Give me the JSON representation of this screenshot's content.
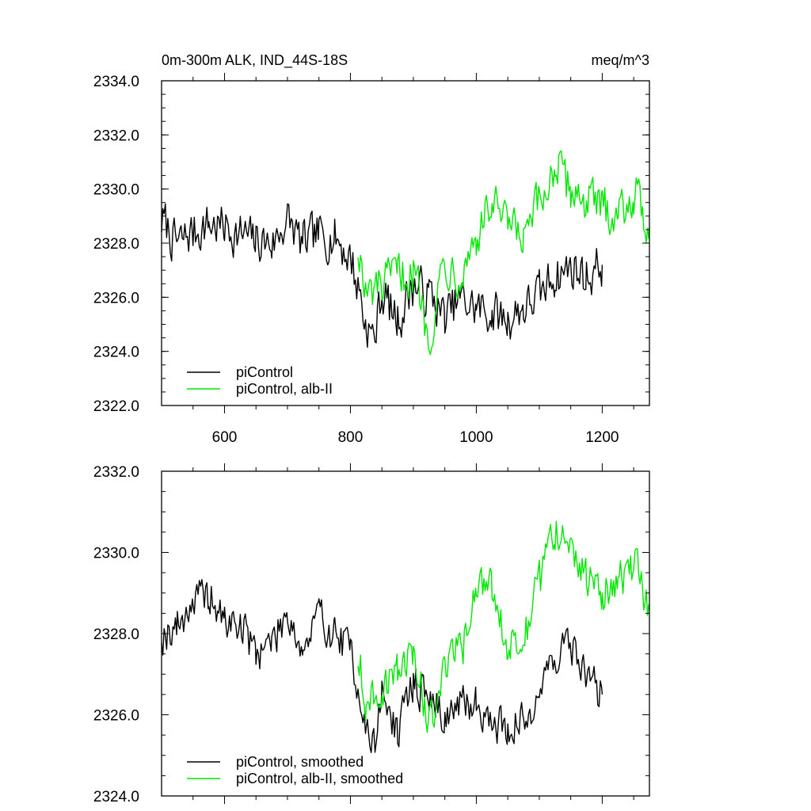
{
  "colors": {
    "piControl": "#000000",
    "alb": "#00e800"
  },
  "chart_data": [
    {
      "type": "line",
      "title": "0m-300m ALK, IND_44S-18S",
      "units": "meq/m^3",
      "xlim": [
        500,
        1275
      ],
      "ylim": [
        2322,
        2334
      ],
      "x_ticks": [
        600,
        800,
        1000,
        1200
      ],
      "x_tick_labels": [
        "600",
        "800",
        "1000",
        "1200"
      ],
      "y_ticks": [
        2322,
        2324,
        2326,
        2328,
        2330,
        2332,
        2334
      ],
      "y_tick_labels": [
        "2322.0",
        "2324.0",
        "2326.0",
        "2328.0",
        "2330.0",
        "2332.0",
        "2334.0"
      ],
      "legend_position": "bottom-left",
      "grid": false,
      "series": [
        {
          "name": "piControl",
          "color": "#000000",
          "x": [
            500,
            525,
            550,
            575,
            600,
            625,
            650,
            675,
            700,
            725,
            750,
            775,
            800,
            812,
            825,
            837,
            850,
            875,
            900,
            925,
            950,
            975,
            1000,
            1025,
            1050,
            1075,
            1100,
            1125,
            1150,
            1175,
            1200
          ],
          "y": [
            2328.8,
            2328.0,
            2328.4,
            2328.7,
            2328.6,
            2328.3,
            2328.1,
            2328.0,
            2328.8,
            2328.0,
            2328.3,
            2328.2,
            2327.5,
            2326.4,
            2325.0,
            2324.5,
            2326.1,
            2325.2,
            2326.4,
            2326.1,
            2325.3,
            2325.9,
            2325.6,
            2325.4,
            2325.2,
            2325.6,
            2326.1,
            2326.8,
            2327.1,
            2326.8,
            2327.2
          ]
        },
        {
          "name": "piControl, alb-II",
          "color": "#00e800",
          "x": [
            812,
            825,
            850,
            875,
            900,
            925,
            950,
            975,
            1000,
            1025,
            1050,
            1075,
            1100,
            1125,
            1150,
            1175,
            1200,
            1225,
            1250,
            1275
          ],
          "y": [
            2327.8,
            2326.0,
            2326.4,
            2326.8,
            2326.9,
            2324.8,
            2327.2,
            2327.0,
            2328.2,
            2329.4,
            2328.6,
            2328.1,
            2329.4,
            2330.8,
            2330.0,
            2329.6,
            2329.3,
            2329.2,
            2329.8,
            2328.6
          ]
        }
      ],
      "legend": [
        "piControl",
        "piControl, alb-II"
      ]
    },
    {
      "type": "line",
      "xlim": [
        500,
        1275
      ],
      "ylim": [
        2324,
        2332
      ],
      "x_ticks": [
        600,
        800,
        1000,
        1200
      ],
      "y_ticks": [
        2324,
        2326,
        2328,
        2330,
        2332
      ],
      "y_tick_labels": [
        "2324.0",
        "2326.0",
        "2328.0",
        "2330.0",
        "2332.0"
      ],
      "legend_position": "bottom-left",
      "grid": false,
      "series": [
        {
          "name": "piControl, smoothed",
          "color": "#000000",
          "x": [
            500,
            525,
            550,
            575,
            600,
            625,
            650,
            675,
            700,
            725,
            750,
            775,
            800,
            812,
            825,
            837,
            850,
            875,
            900,
            925,
            950,
            975,
            1000,
            1025,
            1050,
            1075,
            1100,
            1125,
            1150,
            1175,
            1200
          ],
          "y": [
            2328.0,
            2328.2,
            2328.8,
            2328.9,
            2328.3,
            2328.2,
            2327.6,
            2327.8,
            2328.5,
            2327.6,
            2328.4,
            2328.0,
            2327.6,
            2326.8,
            2325.6,
            2325.2,
            2326.5,
            2325.6,
            2326.8,
            2326.4,
            2326.0,
            2326.2,
            2326.3,
            2325.8,
            2325.7,
            2325.8,
            2326.6,
            2327.5,
            2327.7,
            2327.0,
            2326.5
          ]
        },
        {
          "name": "piControl, alb-II, smoothed",
          "color": "#00e800",
          "x": [
            812,
            825,
            850,
            875,
            900,
            925,
            950,
            975,
            1000,
            1025,
            1050,
            1075,
            1100,
            1125,
            1150,
            1175,
            1200,
            1225,
            1250,
            1275
          ],
          "y": [
            2327.4,
            2326.3,
            2326.7,
            2327.0,
            2327.6,
            2325.8,
            2327.2,
            2327.6,
            2329.2,
            2329.1,
            2327.8,
            2328.0,
            2329.2,
            2330.6,
            2329.9,
            2329.4,
            2329.0,
            2329.3,
            2329.7,
            2328.6
          ]
        }
      ],
      "legend": [
        "piControl, smoothed",
        "piControl, alb-II, smoothed"
      ]
    }
  ]
}
